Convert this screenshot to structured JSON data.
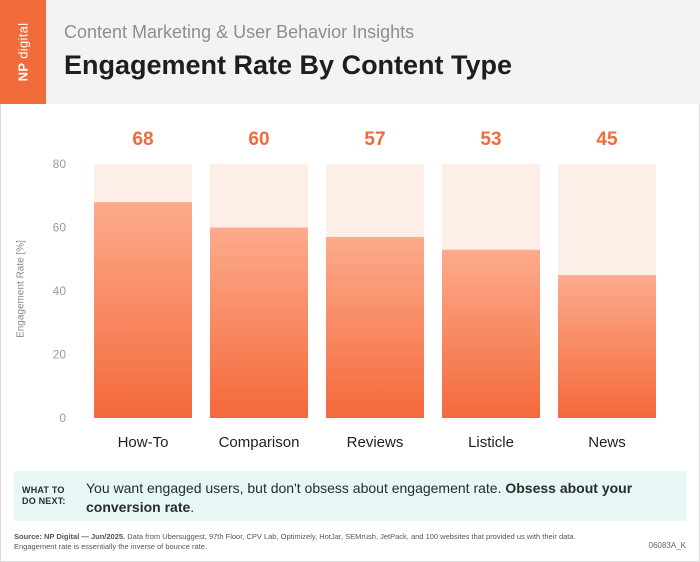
{
  "brand": {
    "np": "NP",
    "digital": "digital"
  },
  "header": {
    "subtitle": "Content Marketing & User Behavior Insights",
    "title": "Engagement Rate By Content Type"
  },
  "colors": {
    "accent": "#f26b3a",
    "bar_top": "#fcab8c",
    "bar_bottom": "#f4693b",
    "bar_background": "#fdeee8",
    "value_label": "#f26b3a",
    "callout_bg": "#e6f7f5"
  },
  "chart_data": {
    "type": "bar",
    "title": "Engagement Rate By Content Type",
    "ylabel": "Engagement Rate [%]",
    "xlabel": "",
    "categories": [
      "How-To",
      "Comparison",
      "Reviews",
      "Listicle",
      "News"
    ],
    "values": [
      68,
      60,
      57,
      53,
      45
    ],
    "value_labels": [
      "68",
      "60",
      "57",
      "53",
      "45"
    ],
    "ylim": [
      0,
      80
    ],
    "yticks": [
      0,
      20,
      40,
      60,
      80
    ],
    "grid": false,
    "legend": "none"
  },
  "callout": {
    "tag": "WHAT TO\nDO NEXT:",
    "text_plain": "You want engaged users, but don't obsess about engagement rate. ",
    "text_bold": "Obsess about your conversion rate",
    "text_end": "."
  },
  "source": {
    "label": "Source: NP Digital — Jun/2025.",
    "text": " Data from Ubersuggest, 97th Floor, CPV Lab, Optimizely, HotJar, SEMrush, JetPack, and 100 websites that provided us with their data.",
    "line2": "Engagement rate is essentially the inverse of bounce rate."
  },
  "code": "06083A_K"
}
